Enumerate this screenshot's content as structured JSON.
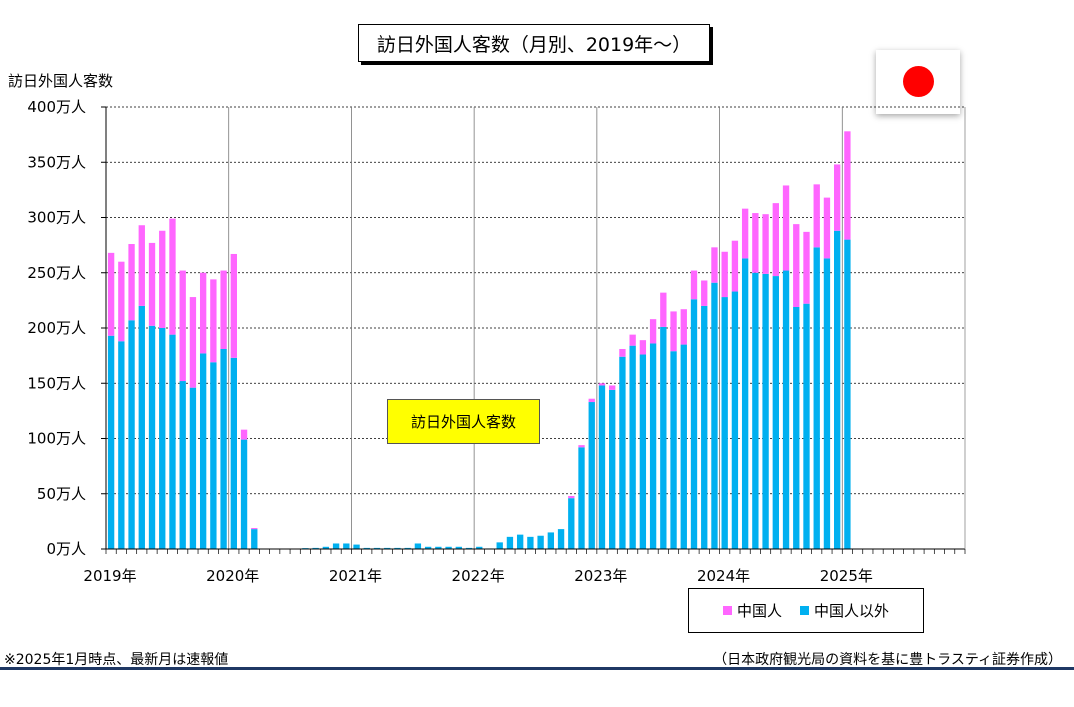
{
  "title": "訪日外国人客数（月別、2019年～）",
  "y_axis_label": "訪日外国人客数",
  "annotation": "訪日外国人客数",
  "footnote": "※2025年1月時点、最新月は速報値",
  "source": "（日本政府観光局の資料を基に豊トラスティ証券作成）",
  "flag_icon": "japan-flag-icon",
  "colors": {
    "china": "#ff66ff",
    "other": "#00b0f0",
    "bottom_rule": "#1f3864",
    "annotation_bg": "#ffff00"
  },
  "chart_data": {
    "type": "bar",
    "stacked": true,
    "unit": "万人",
    "ylim": [
      0,
      400
    ],
    "y_ticks": [
      0,
      50,
      100,
      150,
      200,
      250,
      300,
      350,
      400
    ],
    "y_tick_labels": [
      "0万人",
      "50万人",
      "100万人",
      "150万人",
      "200万人",
      "250万人",
      "300万人",
      "350万人",
      "400万人"
    ],
    "x_tick_labels": [
      "2019年",
      "2020年",
      "2021年",
      "2022年",
      "2023年",
      "2024年",
      "2025年"
    ],
    "months_total_slots": 84,
    "grid": "horizontal dashed, vertical solid at year boundaries",
    "legend": [
      {
        "name": "中国人",
        "color": "#ff66ff"
      },
      {
        "name": "中国人以外",
        "color": "#00b0f0"
      }
    ],
    "series": [
      {
        "name": "中国人以外",
        "values": [
          193,
          188,
          207,
          220,
          202,
          200,
          194,
          152,
          146,
          177,
          169,
          181,
          173,
          99,
          18,
          0.2,
          0.1,
          0.1,
          0.3,
          0.8,
          1,
          2,
          5,
          5,
          4,
          1,
          1,
          1,
          1,
          1,
          5,
          2,
          2,
          2,
          2,
          1,
          2,
          0.5,
          6,
          11,
          13,
          11,
          12,
          15,
          18,
          46,
          92,
          133,
          148,
          144,
          174,
          184,
          176,
          186,
          201,
          179,
          185,
          226,
          220,
          241,
          228,
          233,
          263,
          250,
          249,
          247,
          252,
          219,
          222,
          273,
          263,
          288,
          280
        ]
      },
      {
        "name": "中国人",
        "values": [
          75,
          72,
          69,
          73,
          75,
          88,
          105,
          100,
          82,
          73,
          75,
          71,
          94,
          9,
          1,
          0,
          0,
          0,
          0,
          0,
          0,
          0,
          0,
          0,
          0,
          0,
          0,
          0,
          0,
          0,
          0,
          0,
          0,
          0,
          0,
          0,
          0,
          0,
          0,
          0,
          0,
          0,
          0,
          0,
          0,
          2,
          2,
          3,
          2,
          4,
          7,
          10,
          13,
          22,
          31,
          36,
          32,
          26,
          23,
          32,
          41,
          46,
          45,
          54,
          54,
          66,
          77,
          75,
          65,
          57,
          55,
          60,
          98
        ]
      }
    ]
  }
}
